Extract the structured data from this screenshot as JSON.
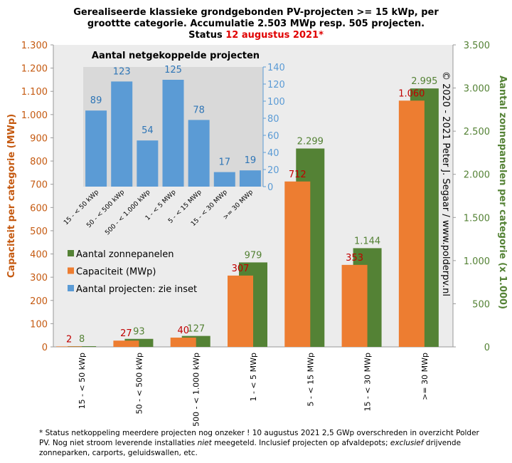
{
  "chart_data": [
    {
      "type": "bar",
      "title": [
        "Gerealiseerde klassieke grondgebonden PV-projecten >= 15 kWp, per",
        "groottte categorie. Accumulatie 2.503 MWp resp. 505 projecten.",
        "Status "
      ],
      "title_highlight": "12 augustus 2021*",
      "ylabel": "Capaciteit per categorie (MWp)",
      "y2label": "Aantal zonnepanelen per categorie (x 1.000)",
      "annotation": "© 2020 - 2021 Peter J. Segaar / www.polderpv.nl",
      "footnote": [
        {
          "text": "* Status netkoppeling meerdere projecten nog onzeker ! 10 augustus 2021 2,5 GWp overschreden in overzicht",
          "italic": false
        },
        {
          "text": "Polder PV. Nog niet stroom leverende installaties ",
          "italic": false
        },
        {
          "text": "niet",
          "italic": true
        },
        {
          "text": " meegeteld. Inclusief projecten op afvaldepots; ",
          "italic": false
        },
        {
          "text": "exclusief",
          "italic": true
        },
        {
          "text": "drijvende zonneparken, carports, geluidswallen, etc.",
          "italic": false
        }
      ],
      "categories": [
        "15 - < 50 kWp",
        "50 - < 500 kWp",
        "500 - < 1.000 kWp",
        "1 - < 5 MWp",
        "5 - < 15 MWp",
        "15 - < 30 MWp",
        ">= 30 MWp"
      ],
      "series": [
        {
          "name": "Aantal zonnepanelen",
          "color": "#548235",
          "axis": "y2",
          "label_color": "#548235",
          "values": [
            8,
            93,
            127,
            979,
            2299,
            1144,
            2995
          ],
          "value_labels": [
            "8",
            "93",
            "127",
            "979",
            "2.299",
            "1.144",
            "2.995"
          ]
        },
        {
          "name": "Capaciteit (MWp)",
          "color": "#ed7d31",
          "label_color": "#c00000",
          "values": [
            2,
            27,
            40,
            307,
            712,
            353,
            1060
          ],
          "value_labels": [
            "2",
            "27",
            "40",
            "307",
            "712",
            "353",
            "1.060"
          ]
        }
      ],
      "ylim": [
        0,
        1300
      ],
      "yticks": [
        0,
        100,
        200,
        300,
        400,
        500,
        600,
        700,
        800,
        900,
        {
          "value": 1000,
          "label": "1.000"
        },
        {
          "value": 1100,
          "label": "1.100"
        },
        {
          "value": 1200,
          "label": "1.200"
        },
        {
          "value": 1300,
          "label": "1.300"
        }
      ],
      "y2lim": [
        0,
        3500
      ],
      "y2ticks": [
        0,
        500,
        {
          "value": 1000,
          "label": "1.000"
        },
        {
          "value": 1500,
          "label": "1.500"
        },
        {
          "value": 2000,
          "label": "2.000"
        },
        {
          "value": 2500,
          "label": "2.500"
        },
        {
          "value": 3000,
          "label": "3.000"
        },
        {
          "value": 3500,
          "label": "3.500"
        }
      ]
    },
    {
      "type": "bar",
      "title": "Aantal netgekoppelde projecten",
      "categories": [
        "15 - < 50 kWp",
        "50 - < 500 kWp",
        "500 - < 1.000 kWp",
        "1 - < 5 MWp",
        "5 - < 15 MWp",
        "15 - < 30 MWp",
        ">= 30 MWp"
      ],
      "series": [
        {
          "name": "Aantal projecten: zie inset",
          "color": "#5b9bd5",
          "values": [
            89,
            123,
            54,
            125,
            78,
            17,
            19
          ]
        }
      ],
      "ylim": [
        0,
        140
      ],
      "yticks": [
        0,
        20,
        40,
        60,
        80,
        100,
        120,
        140
      ]
    }
  ]
}
